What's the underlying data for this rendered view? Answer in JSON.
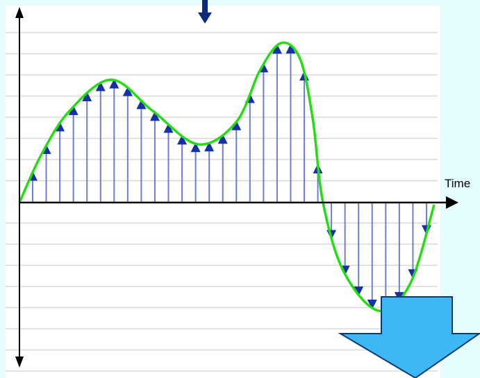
{
  "axis_label": "Time"
}
